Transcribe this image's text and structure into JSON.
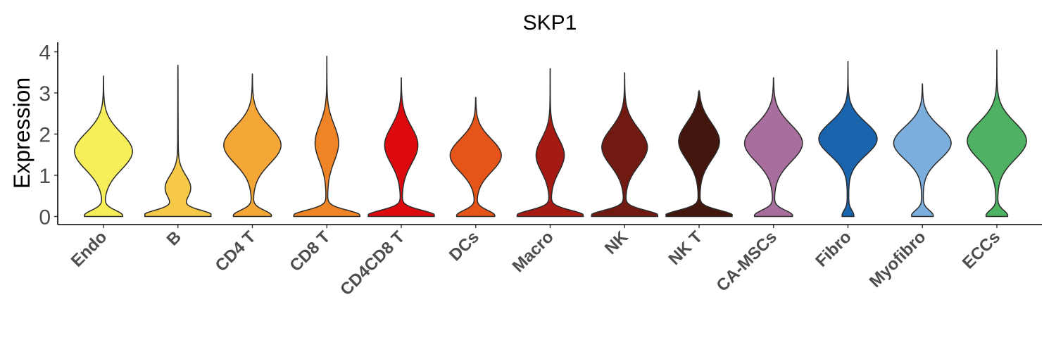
{
  "chart_data": {
    "type": "violin",
    "title": "SKP1",
    "ylabel": "Expression",
    "xlabel": "",
    "ylim": [
      -0.2,
      4.3
    ],
    "yticks": [
      0,
      1,
      2,
      3,
      4
    ],
    "grid": false,
    "legend": "none",
    "series": [
      {
        "category": "Endo",
        "color": "#F7EF5A",
        "max": 3.42,
        "zero_width": 0.55,
        "modes": [
          {
            "center": 1.6,
            "sd": 0.45,
            "width": 0.95
          }
        ]
      },
      {
        "category": "B",
        "color": "#F7C948",
        "max": 3.68,
        "zero_width": 1.0,
        "modes": [
          {
            "center": 0.7,
            "sd": 0.3,
            "width": 0.38
          }
        ]
      },
      {
        "category": "CD4 T",
        "color": "#F4A637",
        "max": 3.47,
        "zero_width": 0.55,
        "modes": [
          {
            "center": 1.75,
            "sd": 0.45,
            "width": 0.95
          }
        ]
      },
      {
        "category": "CD8 T",
        "color": "#EE8425",
        "max": 3.9,
        "zero_width": 1.0,
        "modes": [
          {
            "center": 1.8,
            "sd": 0.45,
            "width": 0.38
          }
        ]
      },
      {
        "category": "CD4CD8 T",
        "color": "#DC0A0F",
        "max": 3.38,
        "zero_width": 1.0,
        "modes": [
          {
            "center": 1.75,
            "sd": 0.45,
            "width": 0.55
          }
        ]
      },
      {
        "category": "DCs",
        "color": "#E5551A",
        "max": 2.9,
        "zero_width": 0.55,
        "modes": [
          {
            "center": 1.5,
            "sd": 0.4,
            "width": 0.85
          }
        ]
      },
      {
        "category": "Macro",
        "color": "#A51A13",
        "max": 3.6,
        "zero_width": 1.0,
        "modes": [
          {
            "center": 1.5,
            "sd": 0.4,
            "width": 0.45
          }
        ]
      },
      {
        "category": "NK",
        "color": "#701A11",
        "max": 3.5,
        "zero_width": 1.0,
        "modes": [
          {
            "center": 1.7,
            "sd": 0.45,
            "width": 0.75
          }
        ]
      },
      {
        "category": "NK T",
        "color": "#43160D",
        "max": 3.05,
        "zero_width": 1.0,
        "modes": [
          {
            "center": 1.85,
            "sd": 0.45,
            "width": 0.7
          }
        ]
      },
      {
        "category": "CA-MSCs",
        "color": "#A86F9E",
        "max": 3.38,
        "zero_width": 0.55,
        "modes": [
          {
            "center": 1.8,
            "sd": 0.45,
            "width": 0.97
          }
        ]
      },
      {
        "category": "Fibro",
        "color": "#1A63AD",
        "max": 3.77,
        "zero_width": 0.15,
        "modes": [
          {
            "center": 1.9,
            "sd": 0.4,
            "width": 0.97
          }
        ]
      },
      {
        "category": "Myofibro",
        "color": "#7CAEDD",
        "max": 3.23,
        "zero_width": 0.3,
        "modes": [
          {
            "center": 1.8,
            "sd": 0.4,
            "width": 0.97
          }
        ]
      },
      {
        "category": "ECCs",
        "color": "#4FB263",
        "max": 4.05,
        "zero_width": 0.3,
        "modes": [
          {
            "center": 1.85,
            "sd": 0.45,
            "width": 0.97
          }
        ]
      }
    ]
  }
}
